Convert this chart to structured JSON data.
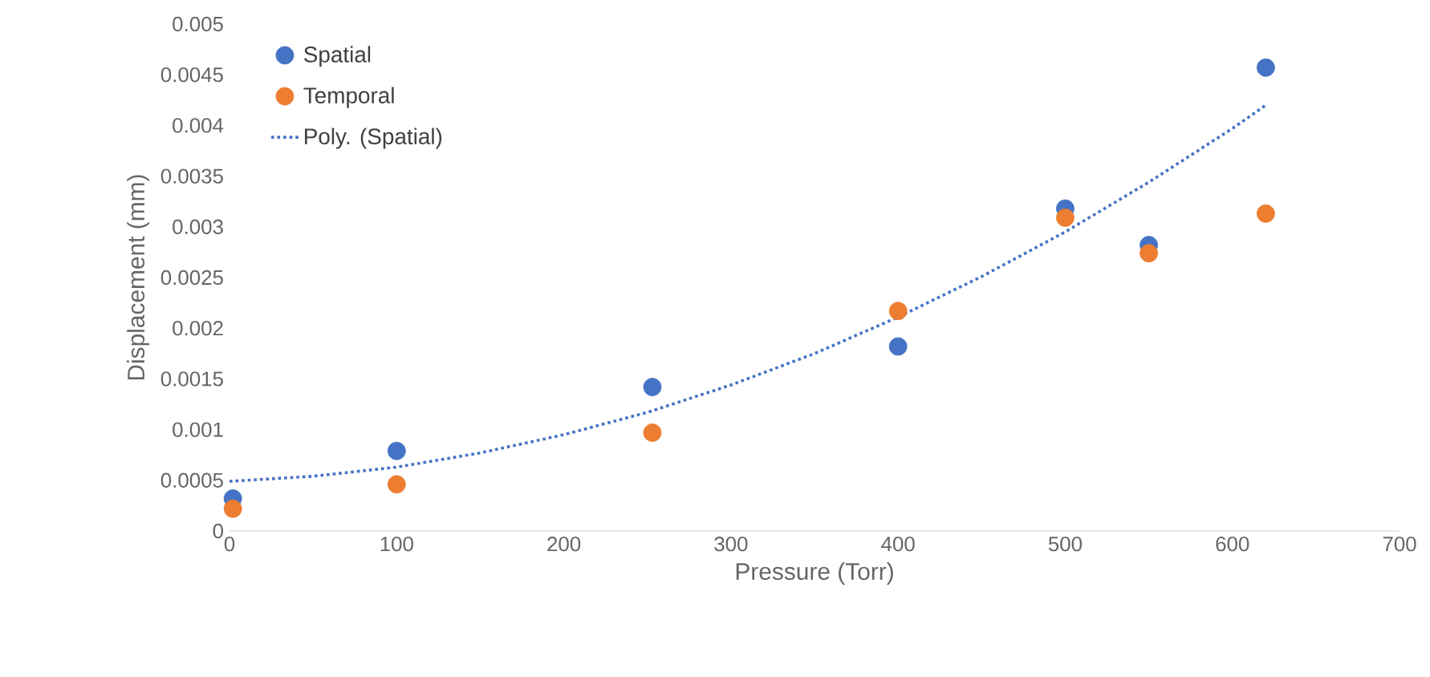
{
  "chart_data": {
    "type": "scatter",
    "xlabel": "Pressure (Torr)",
    "ylabel": "Displacement (mm)",
    "x": [
      2,
      100,
      253,
      400,
      500,
      550,
      620
    ],
    "series": [
      {
        "name": "Spatial",
        "color": "#4472c4",
        "values": [
          0.00032,
          0.00079,
          0.00142,
          0.00182,
          0.00318,
          0.00282,
          0.00457
        ]
      },
      {
        "name": "Temporal",
        "color": "#ed7d31",
        "values": [
          0.00022,
          0.00046,
          0.00097,
          0.00217,
          0.00309,
          0.00274,
          0.00313
        ]
      },
      {
        "name": "Poly. (Spatial)",
        "type": "line",
        "color": "#4472c4",
        "line_style": "dotted",
        "marker": "none",
        "x": [
          0,
          50,
          100,
          150,
          200,
          250,
          300,
          350,
          400,
          450,
          500,
          550,
          600,
          620
        ],
        "values": [
          0.00049,
          0.00054,
          0.00063,
          0.00077,
          0.00095,
          0.00117,
          0.00144,
          0.00175,
          0.00211,
          0.00251,
          0.00295,
          0.00344,
          0.00397,
          0.0042
        ]
      }
    ],
    "xlim": [
      0,
      700
    ],
    "xticks": [
      0,
      100,
      200,
      300,
      400,
      500,
      600,
      700
    ],
    "ylim": [
      0,
      0.005
    ],
    "yticks": [
      0,
      0.0005,
      0.001,
      0.0015,
      0.002,
      0.0025,
      0.003,
      0.0035,
      0.004,
      0.0045,
      0.005
    ],
    "grid": false,
    "legend": "top left",
    "marker": "circle"
  }
}
